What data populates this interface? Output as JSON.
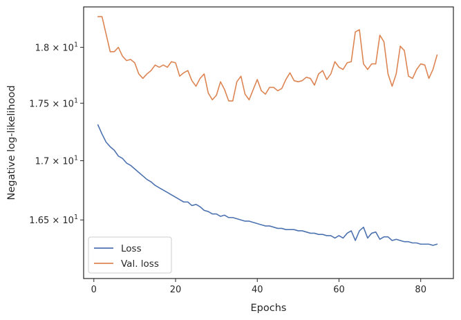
{
  "chart_data": {
    "type": "line",
    "title": "",
    "xlabel": "Epochs",
    "ylabel": "Negative log-likelihood",
    "xlim": [
      -2.5,
      88
    ],
    "ylim": [
      16.02,
      18.37
    ],
    "yscale": "log",
    "grid": false,
    "legend_position": "lower-left",
    "x_ticks": [
      {
        "value": 0,
        "label": "0"
      },
      {
        "value": 20,
        "label": "20"
      },
      {
        "value": 40,
        "label": "40"
      },
      {
        "value": 60,
        "label": "60"
      },
      {
        "value": 80,
        "label": "80"
      }
    ],
    "y_ticks": [
      {
        "value": 16.5,
        "base": "1.65",
        "exp": "1"
      },
      {
        "value": 17.0,
        "base": "1.7",
        "exp": "1"
      },
      {
        "value": 17.5,
        "base": "1.75",
        "exp": "1"
      },
      {
        "value": 18.0,
        "base": "1.8",
        "exp": "1"
      }
    ],
    "x": [
      1,
      2,
      3,
      4,
      5,
      6,
      7,
      8,
      9,
      10,
      11,
      12,
      13,
      14,
      15,
      16,
      17,
      18,
      19,
      20,
      21,
      22,
      23,
      24,
      25,
      26,
      27,
      28,
      29,
      30,
      31,
      32,
      33,
      34,
      35,
      36,
      37,
      38,
      39,
      40,
      41,
      42,
      43,
      44,
      45,
      46,
      47,
      48,
      49,
      50,
      51,
      52,
      53,
      54,
      55,
      56,
      57,
      58,
      59,
      60,
      61,
      62,
      63,
      64,
      65,
      66,
      67,
      68,
      69,
      70,
      71,
      72,
      73,
      74,
      75,
      76,
      77,
      78,
      79,
      80,
      81,
      82,
      83,
      84
    ],
    "series": [
      {
        "name": "Loss",
        "color": "#4c72b0",
        "values": [
          17.31,
          17.23,
          17.16,
          17.12,
          17.09,
          17.04,
          17.02,
          16.98,
          16.96,
          16.93,
          16.9,
          16.87,
          16.84,
          16.82,
          16.79,
          16.77,
          16.75,
          16.73,
          16.71,
          16.69,
          16.67,
          16.65,
          16.65,
          16.62,
          16.63,
          16.61,
          16.58,
          16.57,
          16.55,
          16.55,
          16.53,
          16.54,
          16.52,
          16.52,
          16.51,
          16.5,
          16.49,
          16.49,
          16.48,
          16.47,
          16.46,
          16.45,
          16.45,
          16.44,
          16.43,
          16.43,
          16.42,
          16.42,
          16.42,
          16.41,
          16.41,
          16.4,
          16.39,
          16.39,
          16.38,
          16.38,
          16.37,
          16.37,
          16.35,
          16.37,
          16.35,
          16.39,
          16.41,
          16.33,
          16.41,
          16.44,
          16.35,
          16.39,
          16.4,
          16.34,
          16.36,
          16.36,
          16.33,
          16.34,
          16.33,
          16.32,
          16.32,
          16.31,
          16.31,
          16.3,
          16.3,
          16.3,
          16.29,
          16.3
        ]
      },
      {
        "name": "Val. loss",
        "color": "#dd8452",
        "values": [
          18.28,
          18.28,
          18.12,
          17.96,
          17.96,
          18.0,
          17.92,
          17.88,
          17.89,
          17.86,
          17.76,
          17.72,
          17.76,
          17.79,
          17.84,
          17.82,
          17.84,
          17.82,
          17.87,
          17.86,
          17.74,
          17.77,
          17.79,
          17.7,
          17.65,
          17.72,
          17.76,
          17.59,
          17.53,
          17.57,
          17.69,
          17.62,
          17.52,
          17.52,
          17.69,
          17.74,
          17.58,
          17.53,
          17.62,
          17.71,
          17.61,
          17.58,
          17.64,
          17.64,
          17.61,
          17.63,
          17.71,
          17.77,
          17.7,
          17.69,
          17.7,
          17.73,
          17.72,
          17.66,
          17.76,
          17.79,
          17.71,
          17.76,
          17.87,
          17.82,
          17.8,
          17.86,
          17.87,
          18.14,
          18.16,
          17.85,
          17.8,
          17.85,
          17.85,
          18.11,
          18.05,
          17.76,
          17.65,
          17.76,
          18.01,
          17.97,
          17.74,
          17.72,
          17.8,
          17.85,
          17.84,
          17.72,
          17.8,
          17.93
        ]
      }
    ]
  }
}
